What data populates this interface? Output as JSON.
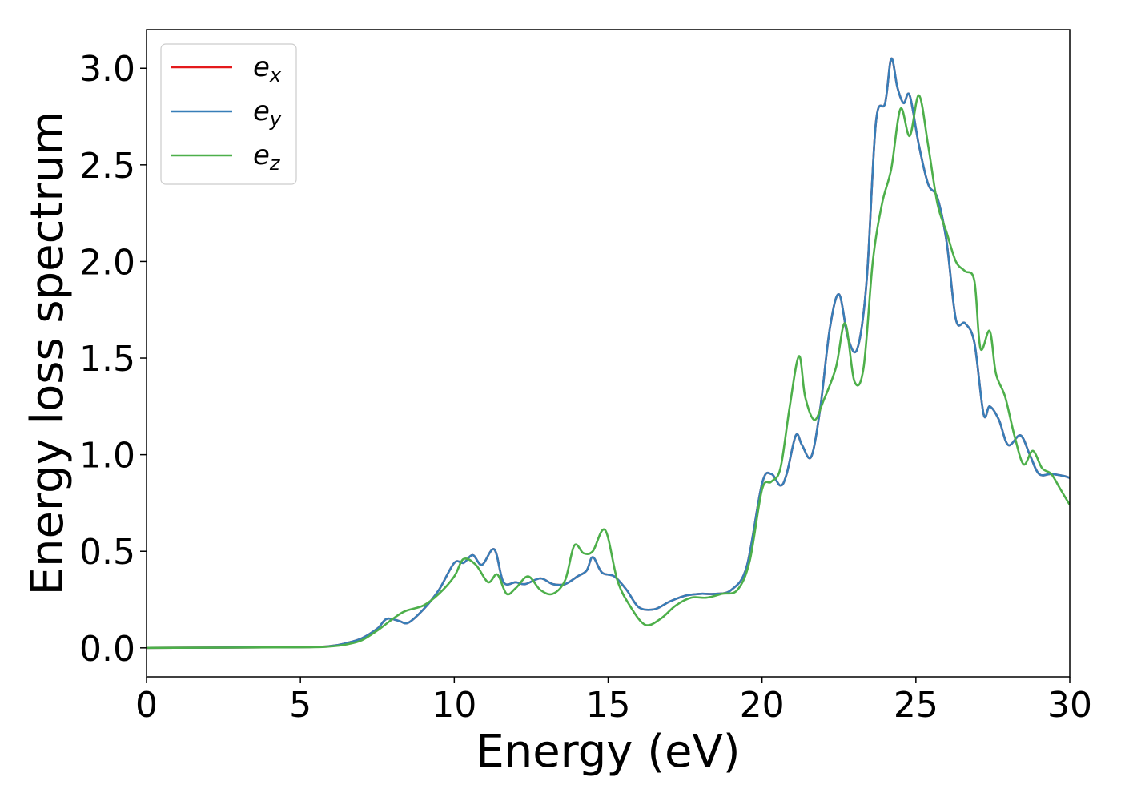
{
  "chart_data": {
    "type": "line",
    "title": "",
    "xlabel": "Energy (eV)",
    "ylabel": "Energy loss spectrum",
    "xlim": [
      0,
      30
    ],
    "ylim": [
      -0.15,
      3.2
    ],
    "xticks": [
      0,
      5,
      10,
      15,
      20,
      25,
      30
    ],
    "xtick_labels": [
      "0",
      "5",
      "10",
      "15",
      "20",
      "25",
      "30"
    ],
    "yticks": [
      0.0,
      0.5,
      1.0,
      1.5,
      2.0,
      2.5,
      3.0
    ],
    "ytick_labels": [
      "0.0",
      "0.5",
      "1.0",
      "1.5",
      "2.0",
      "2.5",
      "3.0"
    ],
    "grid": false,
    "legend_position": "top-left",
    "series": [
      {
        "name_base": "e",
        "name_sub": "x",
        "color": "#e41a1c",
        "x": [
          0,
          5,
          6,
          6.5,
          7,
          7.5,
          7.8,
          8.2,
          8.5,
          9,
          9.5,
          10,
          10.3,
          10.6,
          10.9,
          11.3,
          11.6,
          12,
          12.3,
          12.8,
          13.2,
          13.6,
          14,
          14.3,
          14.5,
          14.8,
          15.2,
          15.6,
          16,
          16.5,
          17,
          17.5,
          18,
          18.5,
          19,
          19.5,
          20,
          20.3,
          20.6,
          20.8,
          21.1,
          21.3,
          21.6,
          21.9,
          22.2,
          22.5,
          22.8,
          23.1,
          23.4,
          23.7,
          24,
          24.2,
          24.4,
          24.6,
          24.8,
          25.1,
          25.4,
          25.7,
          26,
          26.3,
          26.6,
          26.9,
          27.2,
          27.4,
          27.7,
          28,
          28.4,
          28.7,
          29,
          29.4,
          29.8,
          30
        ],
        "y": [
          0.0,
          0.004,
          0.01,
          0.025,
          0.05,
          0.1,
          0.15,
          0.14,
          0.13,
          0.2,
          0.3,
          0.44,
          0.44,
          0.48,
          0.43,
          0.51,
          0.34,
          0.34,
          0.33,
          0.36,
          0.33,
          0.33,
          0.37,
          0.4,
          0.47,
          0.39,
          0.37,
          0.3,
          0.21,
          0.2,
          0.24,
          0.27,
          0.28,
          0.28,
          0.3,
          0.42,
          0.85,
          0.9,
          0.84,
          0.9,
          1.1,
          1.05,
          0.99,
          1.25,
          1.65,
          1.83,
          1.6,
          1.55,
          1.9,
          2.72,
          2.82,
          3.05,
          2.9,
          2.82,
          2.86,
          2.6,
          2.4,
          2.33,
          2.1,
          1.7,
          1.68,
          1.58,
          1.21,
          1.25,
          1.18,
          1.05,
          1.1,
          1.0,
          0.9,
          0.9,
          0.89,
          0.88
        ]
      },
      {
        "name_base": "e",
        "name_sub": "y",
        "color": "#377eb8",
        "x": [
          0,
          5,
          6,
          6.5,
          7,
          7.5,
          7.8,
          8.2,
          8.5,
          9,
          9.5,
          10,
          10.3,
          10.6,
          10.9,
          11.3,
          11.6,
          12,
          12.3,
          12.8,
          13.2,
          13.6,
          14,
          14.3,
          14.5,
          14.8,
          15.2,
          15.6,
          16,
          16.5,
          17,
          17.5,
          18,
          18.5,
          19,
          19.5,
          20,
          20.3,
          20.6,
          20.8,
          21.1,
          21.3,
          21.6,
          21.9,
          22.2,
          22.5,
          22.8,
          23.1,
          23.4,
          23.7,
          24,
          24.2,
          24.4,
          24.6,
          24.8,
          25.1,
          25.4,
          25.7,
          26,
          26.3,
          26.6,
          26.9,
          27.2,
          27.4,
          27.7,
          28,
          28.4,
          28.7,
          29,
          29.4,
          29.8,
          30
        ],
        "y": [
          0.0,
          0.004,
          0.01,
          0.025,
          0.05,
          0.1,
          0.15,
          0.14,
          0.13,
          0.2,
          0.3,
          0.44,
          0.44,
          0.48,
          0.43,
          0.51,
          0.34,
          0.34,
          0.33,
          0.36,
          0.33,
          0.33,
          0.37,
          0.4,
          0.47,
          0.39,
          0.37,
          0.3,
          0.21,
          0.2,
          0.24,
          0.27,
          0.28,
          0.28,
          0.3,
          0.42,
          0.85,
          0.9,
          0.84,
          0.9,
          1.1,
          1.05,
          0.99,
          1.25,
          1.65,
          1.83,
          1.6,
          1.55,
          1.9,
          2.72,
          2.82,
          3.05,
          2.9,
          2.82,
          2.86,
          2.6,
          2.4,
          2.33,
          2.1,
          1.7,
          1.68,
          1.58,
          1.21,
          1.25,
          1.18,
          1.05,
          1.1,
          1.0,
          0.9,
          0.9,
          0.89,
          0.88
        ]
      },
      {
        "name_base": "e",
        "name_sub": "z",
        "color": "#4daf4a",
        "x": [
          0,
          5,
          6,
          6.5,
          7,
          7.5,
          8,
          8.4,
          9,
          9.5,
          10,
          10.3,
          10.7,
          11.1,
          11.4,
          11.7,
          12,
          12.4,
          12.8,
          13.2,
          13.6,
          13.9,
          14.2,
          14.5,
          14.9,
          15.3,
          15.7,
          16.2,
          16.7,
          17.2,
          17.7,
          18.2,
          18.7,
          19.2,
          19.6,
          20,
          20.3,
          20.6,
          20.9,
          21.2,
          21.4,
          21.7,
          22,
          22.4,
          22.7,
          23,
          23.3,
          23.6,
          23.9,
          24.2,
          24.5,
          24.8,
          25.1,
          25.4,
          25.7,
          26,
          26.3,
          26.6,
          26.9,
          27.1,
          27.4,
          27.6,
          27.9,
          28.2,
          28.5,
          28.8,
          29.1,
          29.4,
          29.7,
          30
        ],
        "y": [
          0.0,
          0.003,
          0.008,
          0.018,
          0.04,
          0.09,
          0.15,
          0.19,
          0.22,
          0.28,
          0.37,
          0.46,
          0.43,
          0.34,
          0.38,
          0.28,
          0.31,
          0.37,
          0.3,
          0.28,
          0.35,
          0.53,
          0.49,
          0.5,
          0.61,
          0.35,
          0.22,
          0.12,
          0.15,
          0.22,
          0.26,
          0.26,
          0.28,
          0.3,
          0.45,
          0.82,
          0.86,
          0.93,
          1.25,
          1.51,
          1.3,
          1.18,
          1.28,
          1.45,
          1.68,
          1.38,
          1.45,
          2.0,
          2.3,
          2.48,
          2.79,
          2.65,
          2.86,
          2.6,
          2.3,
          2.15,
          2.0,
          1.95,
          1.9,
          1.55,
          1.64,
          1.42,
          1.3,
          1.1,
          0.95,
          1.02,
          0.93,
          0.9,
          0.82,
          0.74
        ]
      }
    ]
  }
}
